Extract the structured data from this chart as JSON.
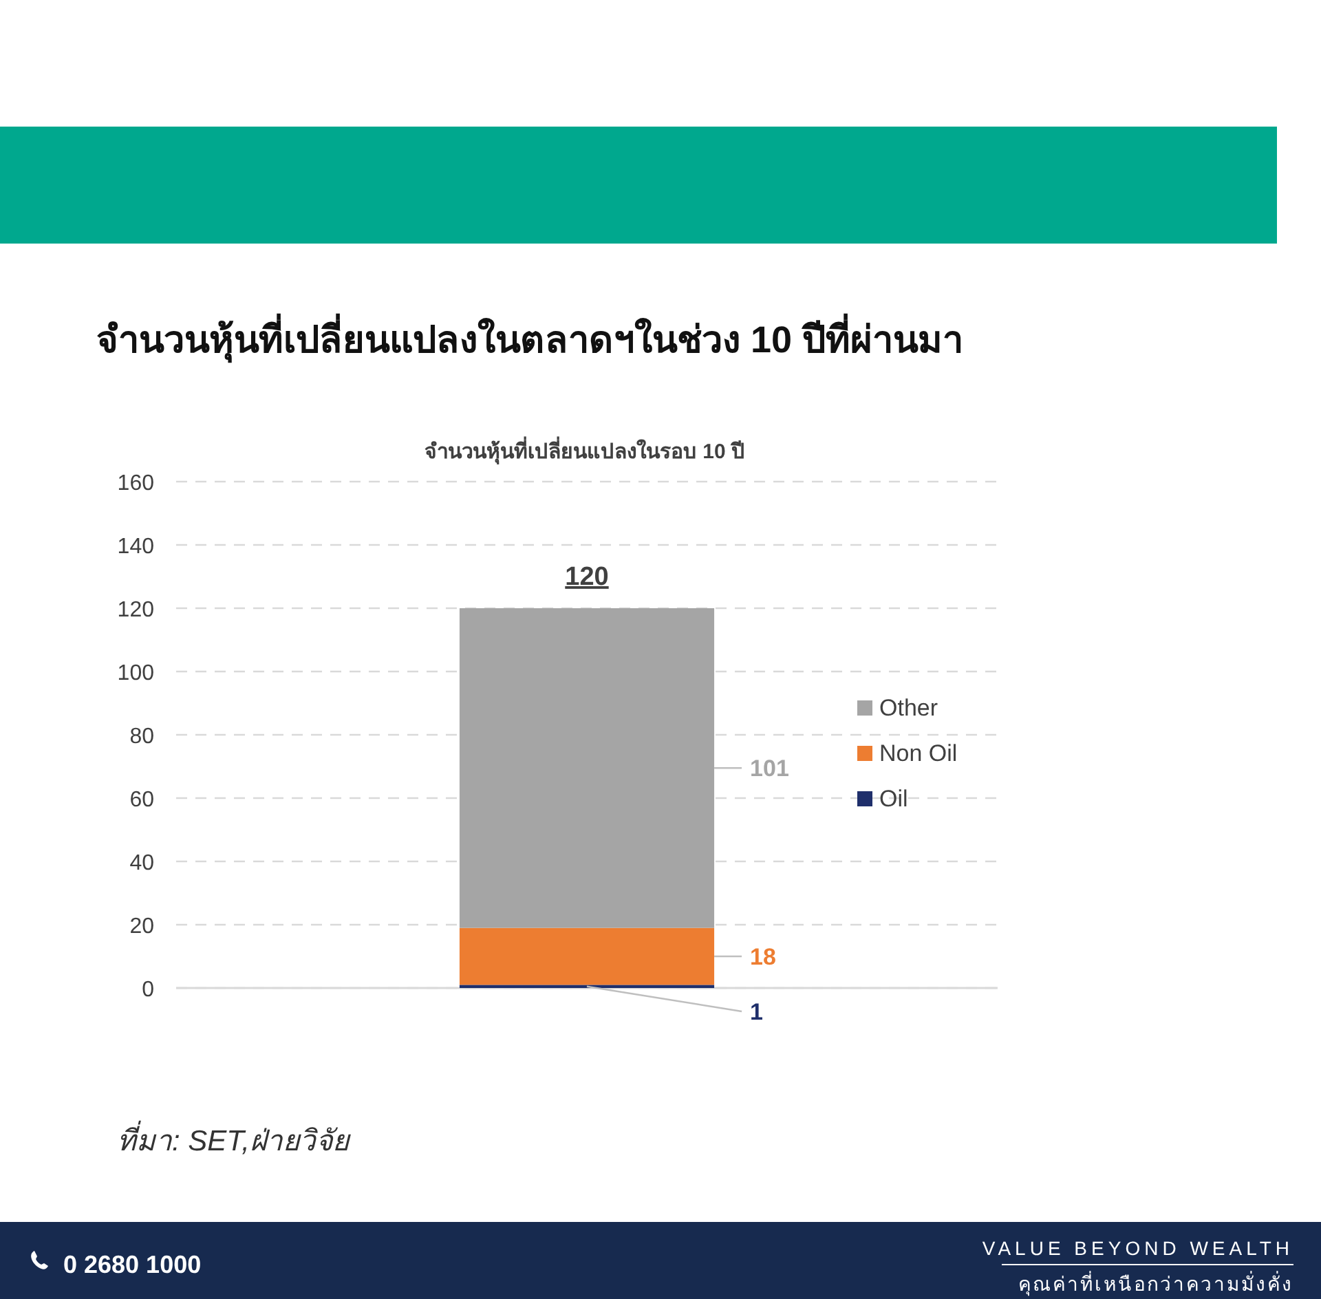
{
  "chart_data": {
    "type": "bar",
    "title": "จำนวนหุ้นที่เปลี่ยนแปลงในตลาดฯในช่วง 10 ปีที่ผ่านมา",
    "subtitle": "จำนวนหุ้นที่เปลี่ยนแปลงในรอบ 10 ปี",
    "categories": [
      null
    ],
    "series": [
      {
        "name": "Oil",
        "color": "#1f2f6b",
        "values": [
          1
        ]
      },
      {
        "name": "Non Oil",
        "color": "#ed7d31",
        "values": [
          18
        ]
      },
      {
        "name": "Other",
        "color": "#a5a5a5",
        "values": [
          101
        ]
      }
    ],
    "stacked": true,
    "ylim": [
      0,
      160
    ],
    "yticks": [
      0,
      20,
      40,
      60,
      80,
      100,
      120,
      140,
      160
    ],
    "grid": "y",
    "legend": "right",
    "tick_labels": "y",
    "data_labels": true,
    "totals": [
      "120"
    ],
    "annotations": [
      "ที่มา: SET,ฝ่ายวิจัย",
      "0 2680 1000",
      "VALUE BEYOND WEALTH",
      "คุณค่าที่เหนือกว่าความมั่งคั่ง"
    ]
  }
}
